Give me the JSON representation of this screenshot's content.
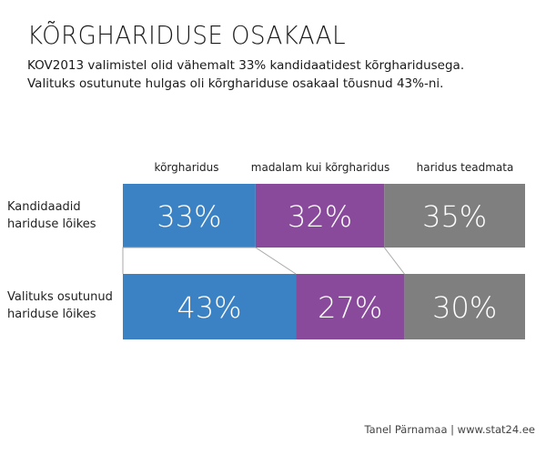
{
  "header": {
    "title": "KÕRGHARIDUSE OSAKAAL",
    "subtitle_line1": "KOV2013 valimistel olid vähemalt 33% kandidaatidest kõrgharidusega.",
    "subtitle_line2": "Valituks osutunute hulgas oli kõrghariduse osakaal tõusnud 43%-ni."
  },
  "chart_data": {
    "type": "bar",
    "orientation": "horizontal",
    "stacked": true,
    "normalized_percent": true,
    "categories": [
      "Kandidaadid hariduse lõikes",
      "Valituks osutunud hariduse lõikes"
    ],
    "category_lines": [
      [
        "Kandidaadid",
        "hariduse lõikes"
      ],
      [
        "Valituks osutunud",
        "hariduse lõikes"
      ]
    ],
    "series": [
      {
        "name": "kõrgharidus",
        "color": "#3a82c4",
        "values": [
          33,
          43
        ]
      },
      {
        "name": "madalam kui kõrgharidus",
        "color": "#8a4a9c",
        "values": [
          32,
          27
        ]
      },
      {
        "name": "haridus teadmata",
        "color": "#7f7f7f",
        "values": [
          35,
          30
        ]
      }
    ],
    "value_labels": [
      [
        "33%",
        "43%"
      ],
      [
        "32%",
        "27%"
      ],
      [
        "35%",
        "30%"
      ]
    ],
    "unit": "%",
    "xlim": [
      0,
      100
    ],
    "legend_position": "top",
    "grid": false
  },
  "footer": {
    "credit": "Tanel Pärnamaa | www.stat24.ee"
  }
}
